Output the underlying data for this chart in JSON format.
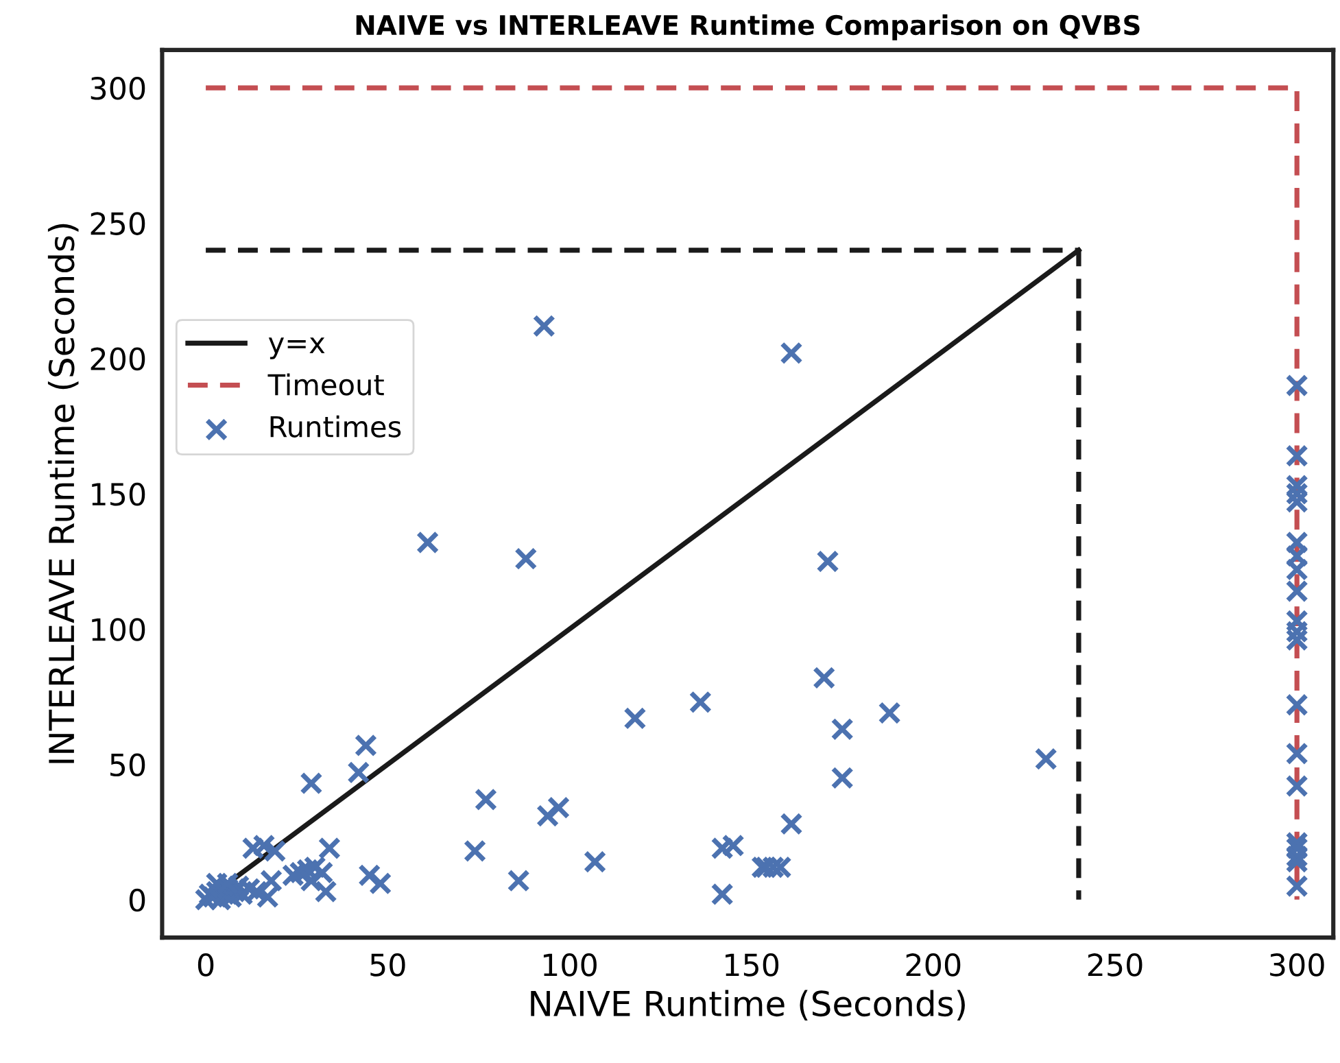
{
  "chart_data": {
    "type": "scatter",
    "title": "NAIVE vs INTERLEAVE Runtime Comparison on QVBS",
    "xlabel": "NAIVE Runtime (Seconds)",
    "ylabel": "INTERLEAVE Runtime (Seconds)",
    "xlim": [
      -12,
      310
    ],
    "ylim": [
      -14,
      314
    ],
    "xticks": [
      0,
      50,
      100,
      150,
      200,
      250,
      300
    ],
    "yticks": [
      0,
      50,
      100,
      150,
      200,
      250,
      300
    ],
    "grid": false,
    "legend": "left",
    "series": [
      {
        "name": "y=x",
        "type": "line",
        "color": "#1a1a1a",
        "line_style": "solid",
        "x": [
          0,
          240
        ],
        "values": [
          0,
          240
        ]
      },
      {
        "type": "line",
        "color": "#1a1a1a",
        "line_style": "dashed",
        "x": [
          0,
          240,
          240
        ],
        "values": [
          240,
          240,
          0
        ]
      },
      {
        "name": "Timeout",
        "type": "line",
        "color": "#c44e52",
        "line_style": "dashed",
        "x": [
          0,
          300,
          300
        ],
        "values": [
          300,
          300,
          0
        ]
      },
      {
        "name": "Runtimes",
        "marker": "cross",
        "color": "#4c72b0",
        "x": [
          44,
          42,
          29,
          77,
          74,
          86,
          94,
          97,
          45,
          48,
          34,
          33,
          13,
          16,
          19,
          24,
          26,
          28,
          30,
          32,
          29,
          18,
          17,
          0,
          1,
          2,
          3,
          4,
          5,
          6,
          7,
          8,
          9,
          10,
          12,
          14,
          3,
          6,
          88,
          171,
          170,
          136,
          118,
          175,
          188,
          175,
          231,
          161,
          107,
          142,
          142,
          145,
          153,
          154,
          156,
          158,
          93,
          161,
          61,
          300,
          300,
          300,
          300,
          300,
          300,
          300,
          300,
          300,
          300,
          300,
          300,
          300,
          300,
          300,
          300,
          300,
          300,
          300,
          300
        ],
        "values": [
          57,
          47,
          43,
          37,
          18,
          7,
          31,
          34,
          9,
          6,
          19,
          3,
          19,
          20,
          18,
          9,
          10,
          11,
          12,
          10,
          7,
          7,
          1,
          0,
          2,
          1,
          3,
          0,
          2,
          4,
          1,
          3,
          5,
          2,
          4,
          3,
          6,
          6,
          126,
          125,
          82,
          73,
          67,
          63,
          69,
          45,
          52,
          28,
          14,
          2,
          19,
          20,
          12,
          12,
          12,
          12,
          212,
          202,
          132,
          190,
          164,
          153,
          150,
          147,
          132,
          127,
          122,
          114,
          103,
          99,
          96,
          72,
          54,
          42,
          21,
          19,
          16,
          14,
          5
        ]
      }
    ]
  }
}
